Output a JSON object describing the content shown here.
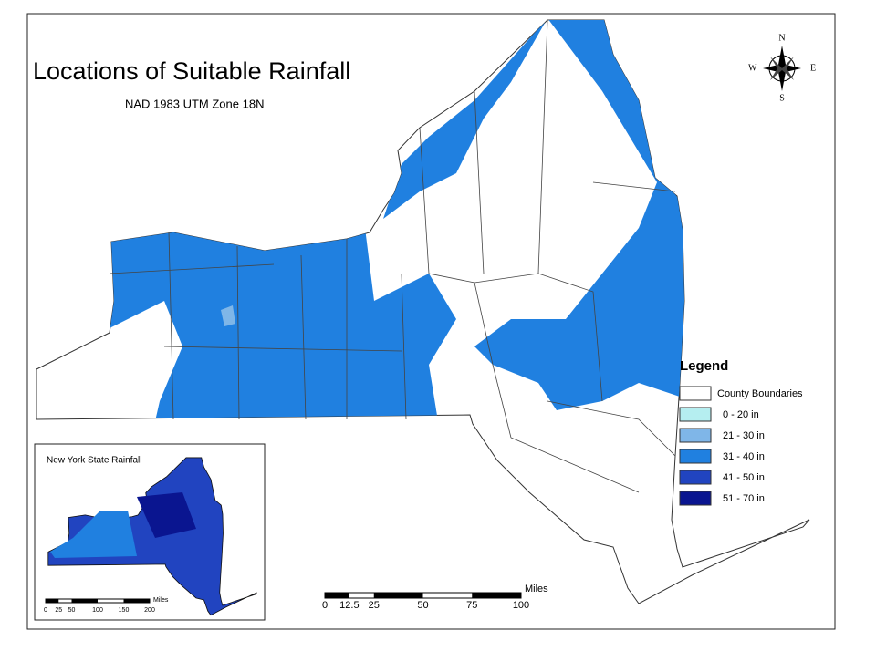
{
  "title": "Locations of Suitable Rainfall",
  "subtitle": "NAD 1983 UTM Zone 18N",
  "compass": {
    "north": "N",
    "south": "S",
    "east": "E",
    "west": "W"
  },
  "legend": {
    "title": "Legend",
    "items": [
      {
        "label": "County Boundaries",
        "color": "#ffffff"
      },
      {
        "label": "0 - 20 in",
        "color": "#b5eef0"
      },
      {
        "label": "21 - 30 in",
        "color": "#7fb6e8"
      },
      {
        "label": "31 - 40 in",
        "color": "#2080e0"
      },
      {
        "label": "41 - 50 in",
        "color": "#2144c0"
      },
      {
        "label": "51 - 70 in",
        "color": "#0a1590"
      }
    ]
  },
  "inset": {
    "title": "New York State Rainfall",
    "scale": {
      "marks": [
        0,
        25,
        50,
        100,
        150,
        200
      ],
      "unit": "Miles"
    }
  },
  "scale_bar": {
    "marks": [
      0,
      12.5,
      25,
      50,
      75,
      100
    ],
    "unit": "Miles"
  }
}
